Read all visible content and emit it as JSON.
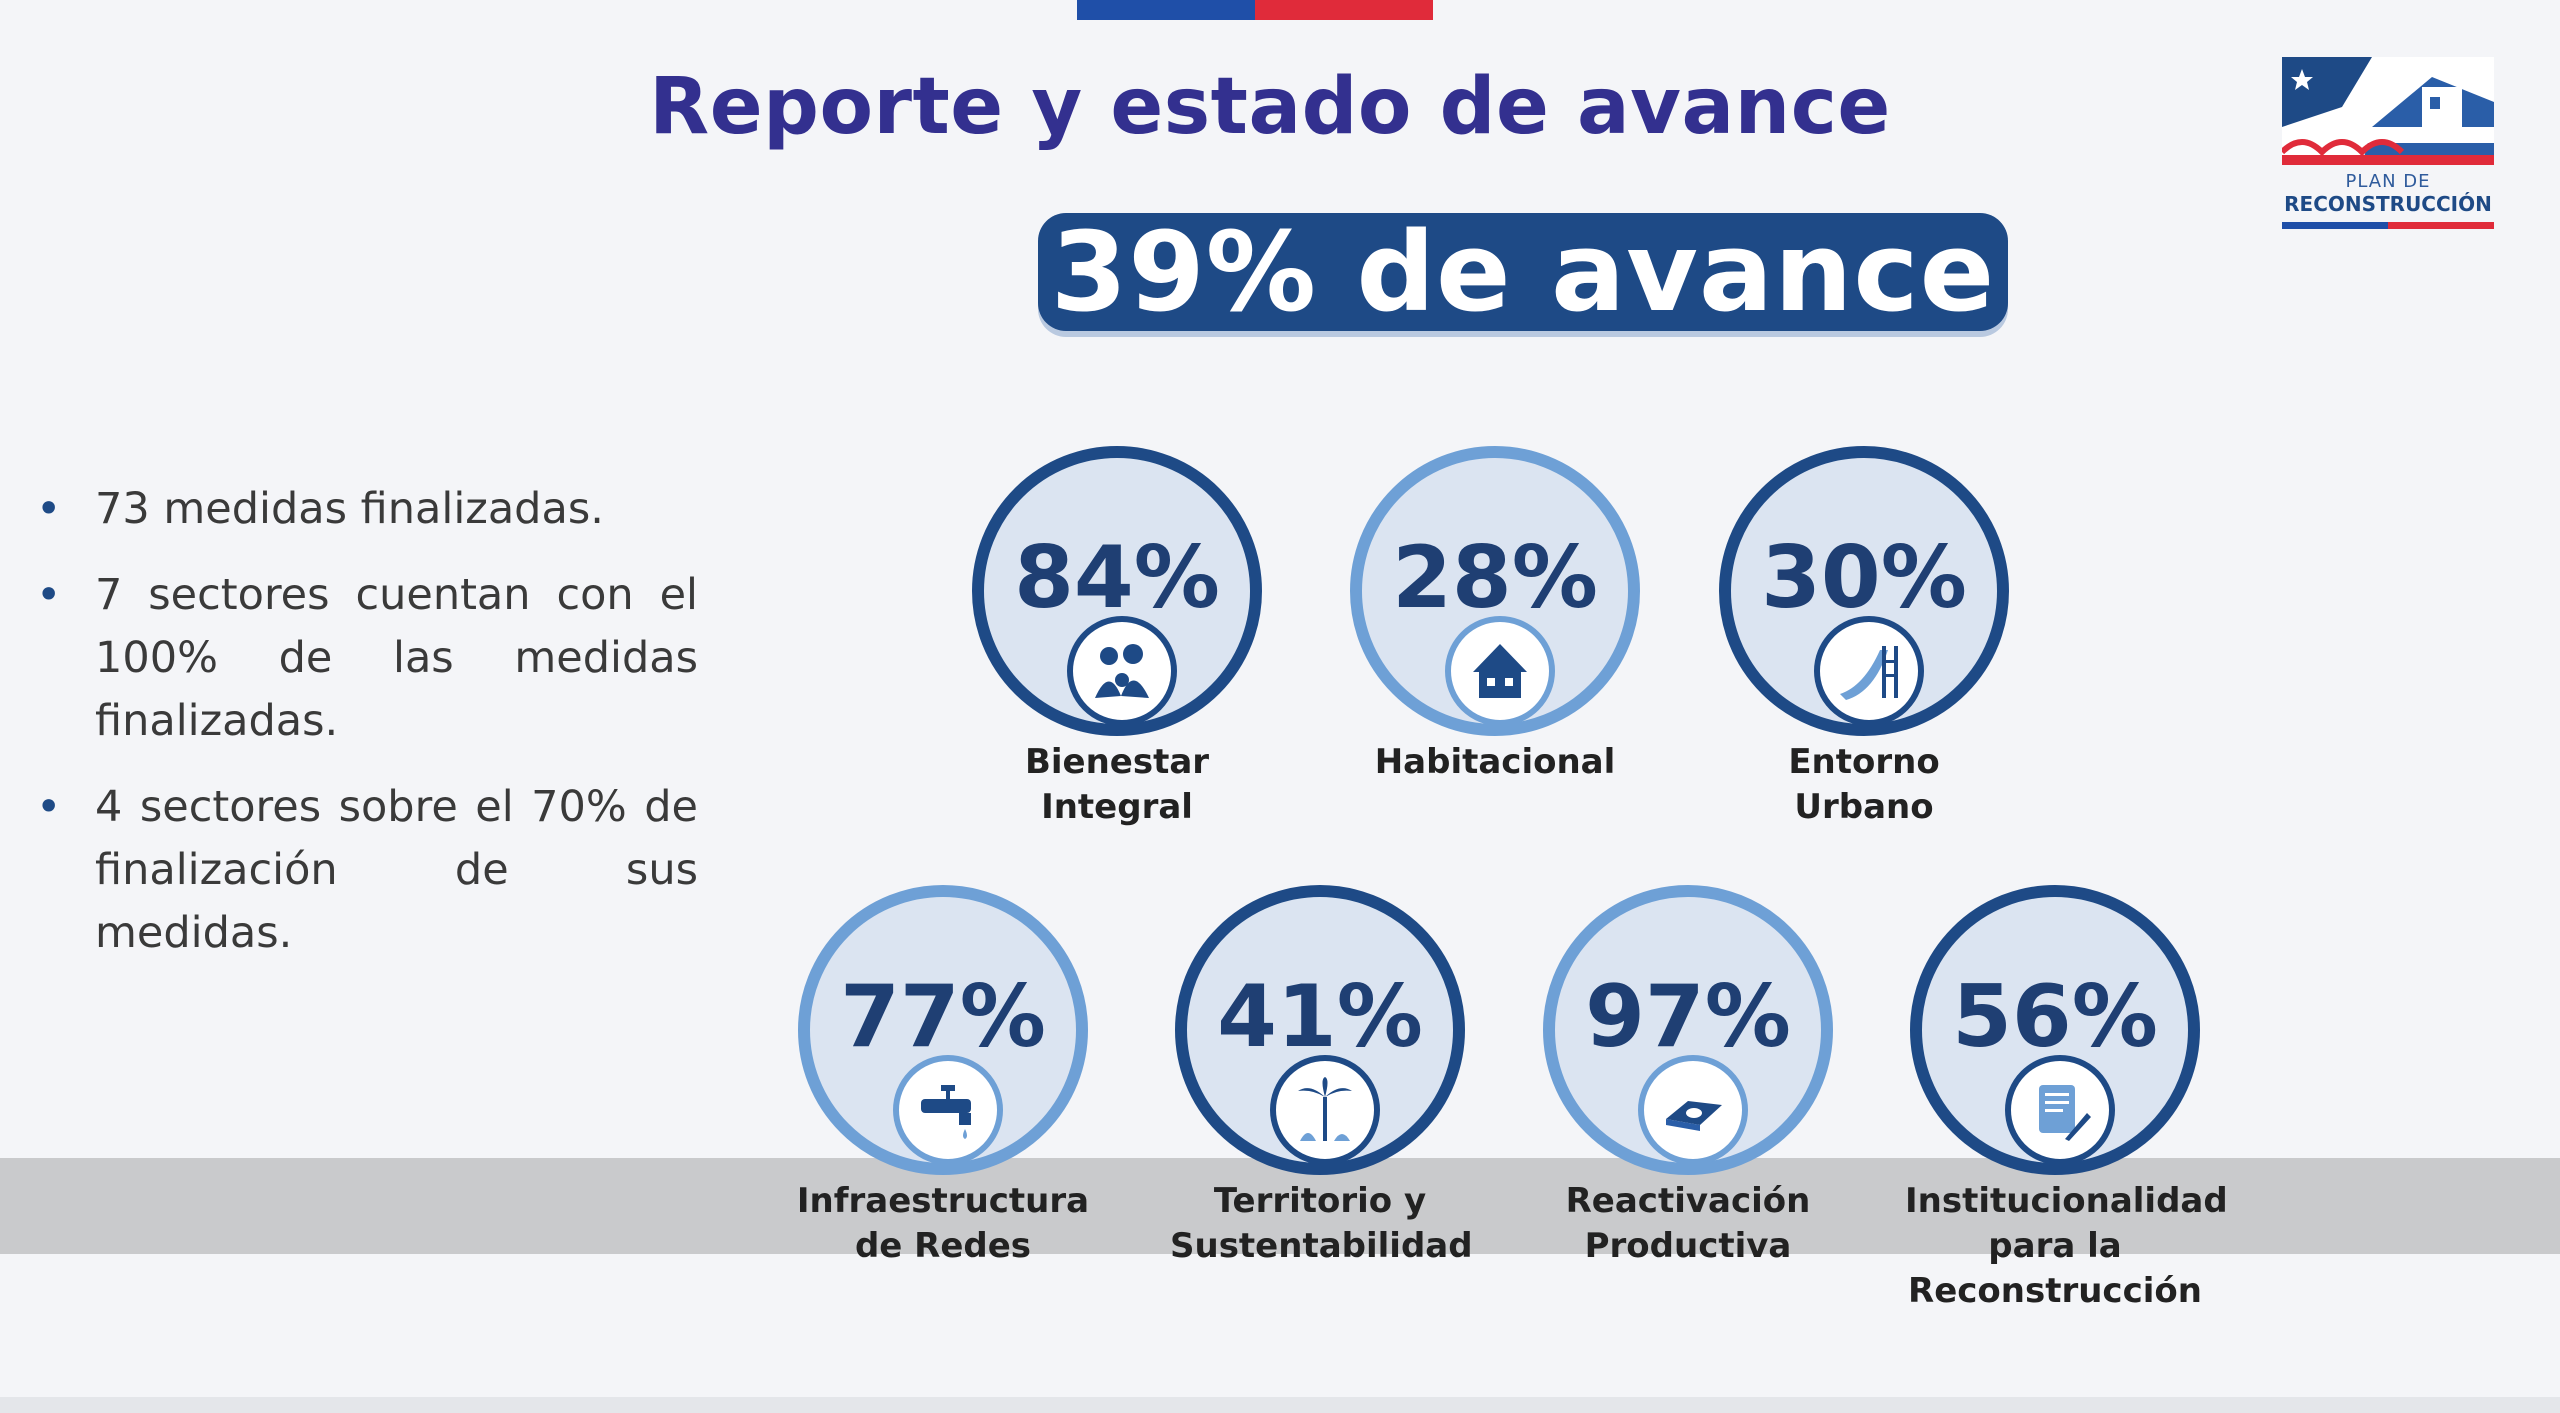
{
  "header": {
    "title": "Reporte y estado de avance"
  },
  "summary": {
    "overall": "39% de avance"
  },
  "logo": {
    "line1": "PLAN DE",
    "line2": "RECONSTRUCCIÓN"
  },
  "bullets": [
    "73 medidas finalizadas.",
    "7 sectores cuentan con el 100% de las medidas finalizadas.",
    "4 sectores sobre el 70% de finalización de sus medidas."
  ],
  "sectors": [
    {
      "pct": "84%",
      "label": "Bienestar\nIntegral",
      "icon": "family-icon",
      "style": "dark"
    },
    {
      "pct": "28%",
      "label": "Habitacional",
      "icon": "house-icon",
      "style": "light"
    },
    {
      "pct": "30%",
      "label": "Entorno\nUrbano",
      "icon": "slide-icon",
      "style": "dark"
    },
    {
      "pct": "77%",
      "label": "Infraestructura\nde Redes",
      "icon": "faucet-icon",
      "style": "light"
    },
    {
      "pct": "41%",
      "label": "Territorio y\nSustentabilidad",
      "icon": "palm-tree-icon",
      "style": "dark"
    },
    {
      "pct": "97%",
      "label": "Reactivación\nProductiva",
      "icon": "money-icon",
      "style": "light"
    },
    {
      "pct": "56%",
      "label": "Institucionalidad\npara la\nReconstrucción",
      "icon": "document-icon",
      "style": "dark"
    }
  ]
}
